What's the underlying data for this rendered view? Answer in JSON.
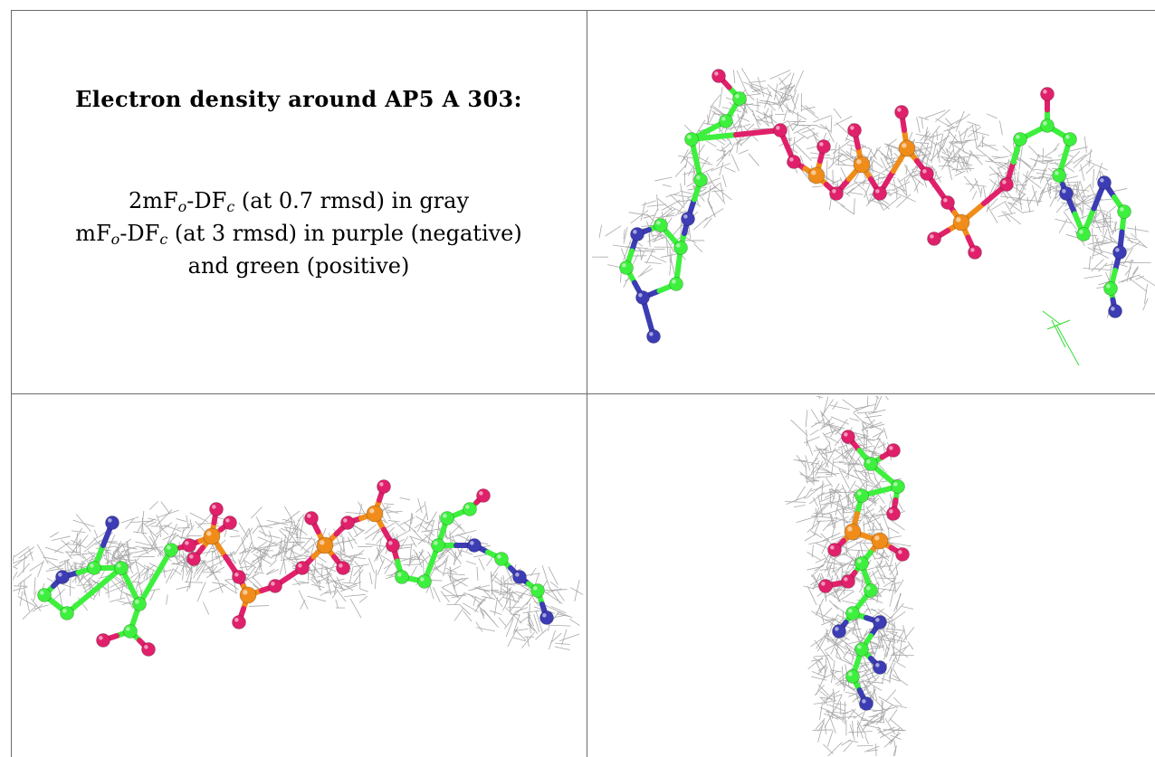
{
  "title": "Electron density around AP5 A 303:",
  "legend": {
    "line1_prefix": "2mF",
    "line1_sub1": "o",
    "line1_mid": "-DF",
    "line1_sub2": "c",
    "line1_suffix": " (at 0.7 rmsd) in gray",
    "line2_prefix": "mF",
    "line2_sub1": "o",
    "line2_mid": "-DF",
    "line2_sub2": "c",
    "line2_suffix": " (at 3 rmsd) in purple (negative)",
    "line3": "and green (positive)"
  },
  "colors": {
    "mesh": "#9a9a9a",
    "carbon": "#3df03d",
    "oxygen": "#e0206a",
    "phosphorus": "#f08c1a",
    "nitrogen": "#3c3cb4",
    "positive_density": "#33dd33",
    "grid_line": "#6b6b6b"
  },
  "panels": [
    {
      "name": "view-top-right"
    },
    {
      "name": "view-bottom-left"
    },
    {
      "name": "view-bottom-right"
    }
  ]
}
